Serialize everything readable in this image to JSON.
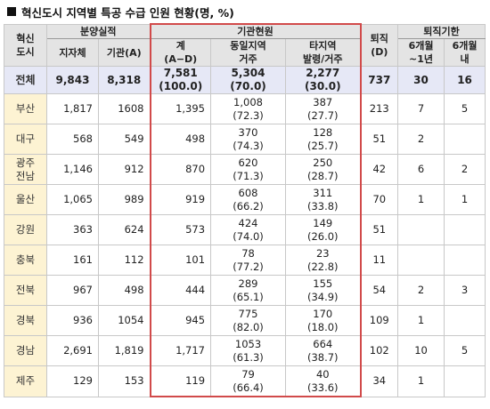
{
  "title": "혁신도시 지역별 특공 수급 인원 현황(명, %)",
  "headers": {
    "region": "혁신\n도시",
    "sale_group": "분양실적",
    "local_gov": "지자체",
    "agency_a": "기관(A)",
    "current_group": "기관현원",
    "total": "계\n(A−D)",
    "same_region": "동일지역\n거주",
    "other_region": "타지역\n발령/거주",
    "resigned": "퇴직\n(D)",
    "resign_period_group": "퇴직기한",
    "six_to_one": "6개월\n~1년",
    "within_six": "6개월\n내"
  },
  "total_row": {
    "region": "전체",
    "local_gov": "9,843",
    "agency_a": "8,318",
    "total_val": "7,581",
    "total_pct": "(100.0)",
    "same_val": "5,304",
    "same_pct": "(70.0)",
    "other_val": "2,277",
    "other_pct": "(30.0)",
    "resigned": "737",
    "six_to_one": "30",
    "within_six": "16"
  },
  "rows": [
    {
      "region": "부산",
      "local_gov": "1,817",
      "agency_a": "1608",
      "total_val": "1,395",
      "same_val": "1,008",
      "same_pct": "(72.3)",
      "other_val": "387",
      "other_pct": "(27.7)",
      "resigned": "213",
      "six_to_one": "7",
      "within_six": "5"
    },
    {
      "region": "대구",
      "local_gov": "568",
      "agency_a": "549",
      "total_val": "498",
      "same_val": "370",
      "same_pct": "(74.3)",
      "other_val": "128",
      "other_pct": "(25.7)",
      "resigned": "51",
      "six_to_one": "2",
      "within_six": ""
    },
    {
      "region": "광주\n전남",
      "local_gov": "1,146",
      "agency_a": "912",
      "total_val": "870",
      "same_val": "620",
      "same_pct": "(71.3)",
      "other_val": "250",
      "other_pct": "(28.7)",
      "resigned": "42",
      "six_to_one": "6",
      "within_six": "2"
    },
    {
      "region": "울산",
      "local_gov": "1,065",
      "agency_a": "989",
      "total_val": "919",
      "same_val": "608",
      "same_pct": "(66.2)",
      "other_val": "311",
      "other_pct": "(33.8)",
      "resigned": "70",
      "six_to_one": "1",
      "within_six": "1"
    },
    {
      "region": "강원",
      "local_gov": "363",
      "agency_a": "624",
      "total_val": "573",
      "same_val": "424",
      "same_pct": "(74.0)",
      "other_val": "149",
      "other_pct": "(26.0)",
      "resigned": "51",
      "six_to_one": "",
      "within_six": ""
    },
    {
      "region": "충북",
      "local_gov": "161",
      "agency_a": "112",
      "total_val": "101",
      "same_val": "78",
      "same_pct": "(77.2)",
      "other_val": "23",
      "other_pct": "(22.8)",
      "resigned": "11",
      "six_to_one": "",
      "within_six": ""
    },
    {
      "region": "전북",
      "local_gov": "967",
      "agency_a": "498",
      "total_val": "444",
      "same_val": "289",
      "same_pct": "(65.1)",
      "other_val": "155",
      "other_pct": "(34.9)",
      "resigned": "54",
      "six_to_one": "2",
      "within_six": "3"
    },
    {
      "region": "경북",
      "local_gov": "936",
      "agency_a": "1054",
      "total_val": "945",
      "same_val": "775",
      "same_pct": "(82.0)",
      "other_val": "170",
      "other_pct": "(18.0)",
      "resigned": "109",
      "six_to_one": "1",
      "within_six": ""
    },
    {
      "region": "경남",
      "local_gov": "2,691",
      "agency_a": "1,819",
      "total_val": "1,717",
      "same_val": "1053",
      "same_pct": "(61.3)",
      "other_val": "664",
      "other_pct": "(38.7)",
      "resigned": "102",
      "six_to_one": "10",
      "within_six": "5"
    },
    {
      "region": "제주",
      "local_gov": "129",
      "agency_a": "153",
      "total_val": "119",
      "same_val": "79",
      "same_pct": "(66.4)",
      "other_val": "40",
      "other_pct": "(33.6)",
      "resigned": "34",
      "six_to_one": "1",
      "within_six": ""
    }
  ]
}
